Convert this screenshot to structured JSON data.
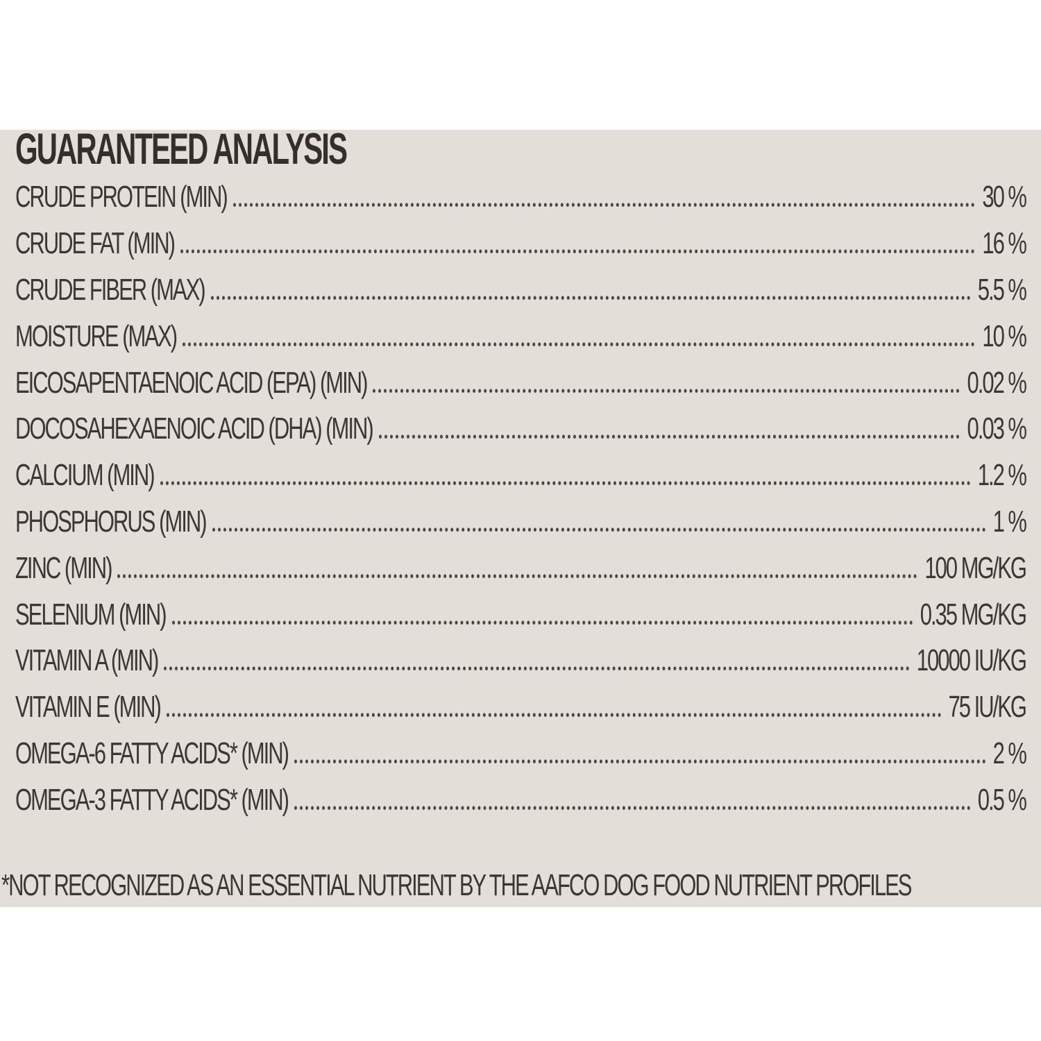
{
  "panel": {
    "title": "GUARANTEED ANALYSIS",
    "rows": [
      {
        "label": "CRUDE PROTEIN (MIN)",
        "value": "30 %"
      },
      {
        "label": "CRUDE FAT (MIN)",
        "value": "16 %"
      },
      {
        "label": "CRUDE FIBER (MAX)",
        "value": "5.5 %"
      },
      {
        "label": "MOISTURE (MAX)",
        "value": "10 %"
      },
      {
        "label": "EICOSAPENTAENOIC ACID (EPA) (MIN)",
        "value": "0.02 %"
      },
      {
        "label": "DOCOSAHEXAENOIC ACID (DHA) (MIN)",
        "value": "0.03 %"
      },
      {
        "label": "CALCIUM (MIN)",
        "value": "1.2 %"
      },
      {
        "label": "PHOSPHORUS (MIN)",
        "value": "1 %"
      },
      {
        "label": "ZINC (MIN)",
        "value": "100 MG/KG"
      },
      {
        "label": "SELENIUM (MIN)",
        "value": "0.35 MG/KG"
      },
      {
        "label": "VITAMIN A (MIN)",
        "value": "10000 IU/KG"
      },
      {
        "label": "VITAMIN E (MIN)",
        "value": "75 IU/KG"
      },
      {
        "label": "OMEGA-6 FATTY ACIDS* (MIN)",
        "value": "2 %"
      },
      {
        "label": "OMEGA-3 FATTY ACIDS* (MIN)",
        "value": "0.5 %"
      }
    ],
    "footnote": "*NOT RECOGNIZED AS AN ESSENTIAL NUTRIENT BY THE AAFCO DOG FOOD NUTRIENT PROFILES"
  },
  "colors": {
    "page_bg": "#ffffff",
    "panel_bg": "#e3dfd8",
    "text": "#3b3733",
    "title": "#33302c"
  }
}
